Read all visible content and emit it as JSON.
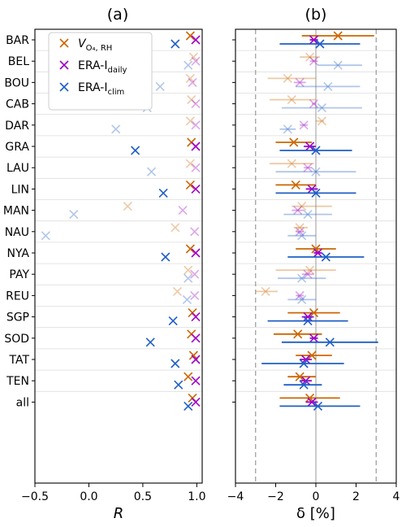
{
  "chart_data": [
    {
      "type": "scatter",
      "panel_title": "(a)",
      "xlabel": "R",
      "xlim": [
        -0.5,
        1.05
      ],
      "xticks": [
        -0.5,
        0.0,
        0.5,
        1.0
      ],
      "xtick_labels": [
        "−0.5",
        "0.0",
        "0.5",
        "1.0"
      ],
      "grid": "horizontal",
      "legend": {
        "placement": "top-left"
      },
      "categories": [
        "BAR",
        "BEL",
        "BOU",
        "CAB",
        "DAR",
        "GRA",
        "LAU",
        "LIN",
        "MAN",
        "NAU",
        "NYA",
        "PAY",
        "REU",
        "SGP",
        "SOD",
        "TAT",
        "TEN",
        "all"
      ],
      "series": [
        {
          "name": "V_O4,RH",
          "label_main": "V",
          "label_sub": "O₄, RH",
          "color": "#cc6600",
          "values": [
            0.94,
            0.97,
            0.94,
            0.95,
            0.94,
            0.95,
            0.94,
            0.94,
            0.36,
            0.8,
            0.94,
            0.92,
            0.82,
            0.96,
            0.95,
            0.97,
            0.92,
            0.96
          ],
          "faded": [
            false,
            true,
            true,
            true,
            true,
            false,
            true,
            false,
            true,
            true,
            false,
            true,
            true,
            false,
            false,
            false,
            false,
            false
          ]
        },
        {
          "name": "ERA-I_daily",
          "label_main": "ERA-I",
          "label_sub": "daily",
          "color": "#a000c8",
          "values": [
            0.99,
            0.99,
            0.96,
            0.99,
            0.99,
            0.99,
            0.99,
            0.99,
            0.87,
            0.98,
            0.99,
            0.98,
            0.98,
            0.99,
            0.99,
            0.99,
            0.99,
            0.99
          ],
          "faded": [
            false,
            true,
            true,
            true,
            true,
            false,
            true,
            false,
            true,
            true,
            false,
            true,
            true,
            false,
            false,
            false,
            false,
            false
          ]
        },
        {
          "name": "ERA-I_clim",
          "label_main": "ERA-I",
          "label_sub": "clim",
          "color": "#1f5fc6",
          "values": [
            0.8,
            0.92,
            0.66,
            0.54,
            0.25,
            0.43,
            0.58,
            0.69,
            -0.14,
            -0.4,
            0.71,
            0.92,
            0.91,
            0.78,
            0.57,
            0.8,
            0.83,
            0.92
          ],
          "faded": [
            false,
            true,
            true,
            true,
            true,
            false,
            true,
            false,
            true,
            true,
            false,
            true,
            true,
            false,
            false,
            false,
            false,
            false
          ]
        }
      ]
    },
    {
      "type": "scatter",
      "panel_title": "(b)",
      "xlabel": "δ [%]",
      "xlim": [
        -4,
        4
      ],
      "xticks": [
        -4,
        -2,
        0,
        2,
        4
      ],
      "xtick_labels": [
        "−4",
        "−2",
        "0",
        "2",
        "4"
      ],
      "reference_lines": {
        "solid": [
          0
        ],
        "dashed": [
          -3,
          3
        ]
      },
      "grid": "horizontal",
      "error_bars": true,
      "categories": [
        "BAR",
        "BEL",
        "BOU",
        "CAB",
        "DAR",
        "GRA",
        "LAU",
        "LIN",
        "MAN",
        "NAU",
        "NYA",
        "PAY",
        "REU",
        "SGP",
        "SOD",
        "TAT",
        "TEN",
        "all"
      ],
      "series": [
        {
          "name": "V_O4,RH",
          "color": "#cc6600",
          "values": [
            1.1,
            -0.3,
            -1.4,
            -1.2,
            0.3,
            -1.1,
            -1.2,
            -1.0,
            -0.7,
            -0.8,
            0.0,
            -0.3,
            -2.5,
            -0.1,
            -0.9,
            -0.2,
            -0.8,
            -0.3
          ],
          "err_low": [
            -0.7,
            -0.8,
            -2.4,
            -2.3,
            0.0,
            -2.0,
            -2.3,
            -2.0,
            -1.2,
            -1.1,
            -1.0,
            -2.0,
            -3.0,
            -1.4,
            -2.1,
            -1.0,
            -1.4,
            -1.8
          ],
          "err_high": [
            2.9,
            0.2,
            0.0,
            0.0,
            0.4,
            -0.2,
            -0.1,
            0.0,
            0.8,
            -0.4,
            1.0,
            1.0,
            -1.9,
            1.2,
            0.3,
            0.8,
            0.0,
            1.2
          ],
          "faded": [
            false,
            true,
            true,
            true,
            true,
            false,
            true,
            false,
            true,
            true,
            false,
            true,
            true,
            false,
            false,
            false,
            false,
            false
          ]
        },
        {
          "name": "ERA-I_daily",
          "color": "#a000c8",
          "values": [
            -0.1,
            -0.1,
            -0.8,
            -0.1,
            -0.6,
            -0.3,
            -0.4,
            -0.2,
            -0.9,
            -0.8,
            0.1,
            -0.4,
            -0.8,
            -0.4,
            -0.1,
            -0.5,
            -0.5,
            -0.2
          ],
          "err_low": [
            -0.3,
            -0.3,
            -1.1,
            -0.2,
            -0.8,
            -0.6,
            -0.6,
            -0.5,
            -1.2,
            -1.0,
            -0.1,
            -0.7,
            -1.0,
            -0.7,
            -0.3,
            -0.8,
            -0.8,
            -0.5
          ],
          "err_high": [
            0.1,
            0.1,
            -0.5,
            0.0,
            -0.4,
            0.0,
            -0.2,
            0.1,
            -0.6,
            -0.6,
            0.3,
            -0.1,
            -0.6,
            -0.1,
            0.1,
            -0.2,
            -0.2,
            0.1
          ],
          "faded": [
            false,
            true,
            true,
            true,
            true,
            false,
            true,
            false,
            true,
            true,
            false,
            true,
            true,
            false,
            false,
            false,
            false,
            false
          ]
        },
        {
          "name": "ERA-I_clim",
          "color": "#1f5fc6",
          "values": [
            0.2,
            1.1,
            0.6,
            0.3,
            -1.4,
            0.0,
            0.0,
            0.0,
            -0.4,
            -0.7,
            0.5,
            -0.7,
            -0.7,
            -0.4,
            0.7,
            -0.6,
            -0.6,
            0.1
          ],
          "err_low": [
            -1.8,
            0.1,
            -1.0,
            -1.7,
            -1.8,
            -1.8,
            -2.0,
            -2.0,
            -1.6,
            -1.4,
            -1.4,
            -1.9,
            -1.4,
            -2.4,
            -1.7,
            -2.7,
            -1.6,
            -1.8
          ],
          "err_high": [
            2.2,
            2.3,
            2.2,
            2.3,
            -1.0,
            1.8,
            2.0,
            2.0,
            0.8,
            0.0,
            2.4,
            0.5,
            0.0,
            1.6,
            3.1,
            1.4,
            0.3,
            2.2
          ],
          "faded": [
            false,
            true,
            true,
            true,
            true,
            false,
            true,
            false,
            true,
            true,
            false,
            true,
            true,
            false,
            false,
            false,
            false,
            false
          ]
        }
      ]
    }
  ]
}
